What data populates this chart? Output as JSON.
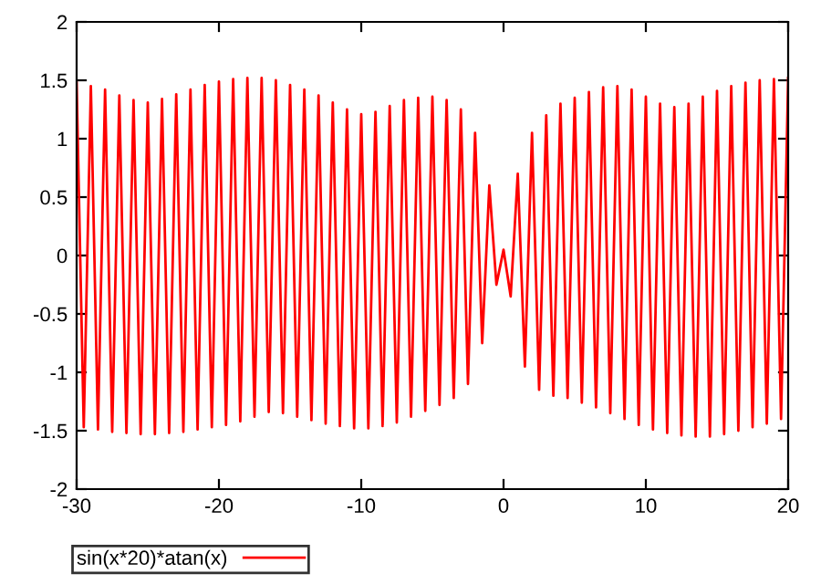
{
  "chart_data": {
    "type": "line",
    "x": [
      -30,
      -29.5,
      -29,
      -28.5,
      -28,
      -27.5,
      -27,
      -26.5,
      -26,
      -25.5,
      -25,
      -24.5,
      -24,
      -23.5,
      -23,
      -22.5,
      -22,
      -21.5,
      -21,
      -20.5,
      -20,
      -19.5,
      -19,
      -18.5,
      -18,
      -17.5,
      -17,
      -16.5,
      -16,
      -15.5,
      -15,
      -14.5,
      -14,
      -13.5,
      -13,
      -12.5,
      -12,
      -11.5,
      -11,
      -10.5,
      -10,
      -9.5,
      -9,
      -8.5,
      -8,
      -7.5,
      -7,
      -6.5,
      -6,
      -5.5,
      -5,
      -4.5,
      -4,
      -3.5,
      -3,
      -2.5,
      -2,
      -1.5,
      -1,
      -0.5,
      0,
      0.5,
      1,
      1.5,
      2,
      2.5,
      3,
      3.5,
      4,
      4.5,
      5,
      5.5,
      6,
      6.5,
      7,
      7.5,
      8,
      8.5,
      9,
      9.5,
      10,
      10.5,
      11,
      11.5,
      12,
      12.5,
      13,
      13.5,
      14,
      14.5,
      15,
      15.5,
      16,
      16.5,
      17,
      17.5,
      18,
      18.5,
      19,
      19.5,
      20
    ],
    "series": [
      {
        "name": "sin(x*20)*atan(x)",
        "color": "#ff0000",
        "values": [
          1.48,
          -1.47,
          1.45,
          -1.49,
          1.42,
          -1.51,
          1.37,
          -1.52,
          1.33,
          -1.53,
          1.31,
          -1.53,
          1.34,
          -1.52,
          1.38,
          -1.51,
          1.42,
          -1.49,
          1.46,
          -1.47,
          1.49,
          -1.45,
          1.51,
          -1.42,
          1.52,
          -1.38,
          1.52,
          -1.34,
          1.5,
          -1.35,
          1.46,
          -1.38,
          1.42,
          -1.41,
          1.37,
          -1.44,
          1.31,
          -1.46,
          1.25,
          -1.48,
          1.21,
          -1.48,
          1.23,
          -1.46,
          1.28,
          -1.43,
          1.33,
          -1.38,
          1.35,
          -1.33,
          1.36,
          -1.28,
          1.33,
          -1.22,
          1.25,
          -1.1,
          1.05,
          -0.75,
          0.6,
          -0.25,
          0.05,
          -0.35,
          0.7,
          -0.95,
          1.05,
          -1.15,
          1.2,
          -1.2,
          1.3,
          -1.22,
          1.35,
          -1.26,
          1.4,
          -1.3,
          1.44,
          -1.35,
          1.45,
          -1.4,
          1.42,
          -1.45,
          1.36,
          -1.49,
          1.3,
          -1.52,
          1.27,
          -1.54,
          1.3,
          -1.55,
          1.36,
          -1.55,
          1.41,
          -1.53,
          1.45,
          -1.5,
          1.48,
          -1.47,
          1.5,
          -1.44,
          1.51,
          -1.4,
          1.52
        ]
      }
    ],
    "xlim": [
      -30,
      20
    ],
    "ylim": [
      -2,
      2
    ],
    "xticks": [
      -30,
      -20,
      -10,
      0,
      10,
      20
    ],
    "yticks": [
      -2,
      -1.5,
      -1,
      -0.5,
      0,
      0.5,
      1,
      1.5,
      2
    ],
    "grid": false,
    "legend": "bottom left",
    "marker": "none",
    "line_style": "solid"
  }
}
